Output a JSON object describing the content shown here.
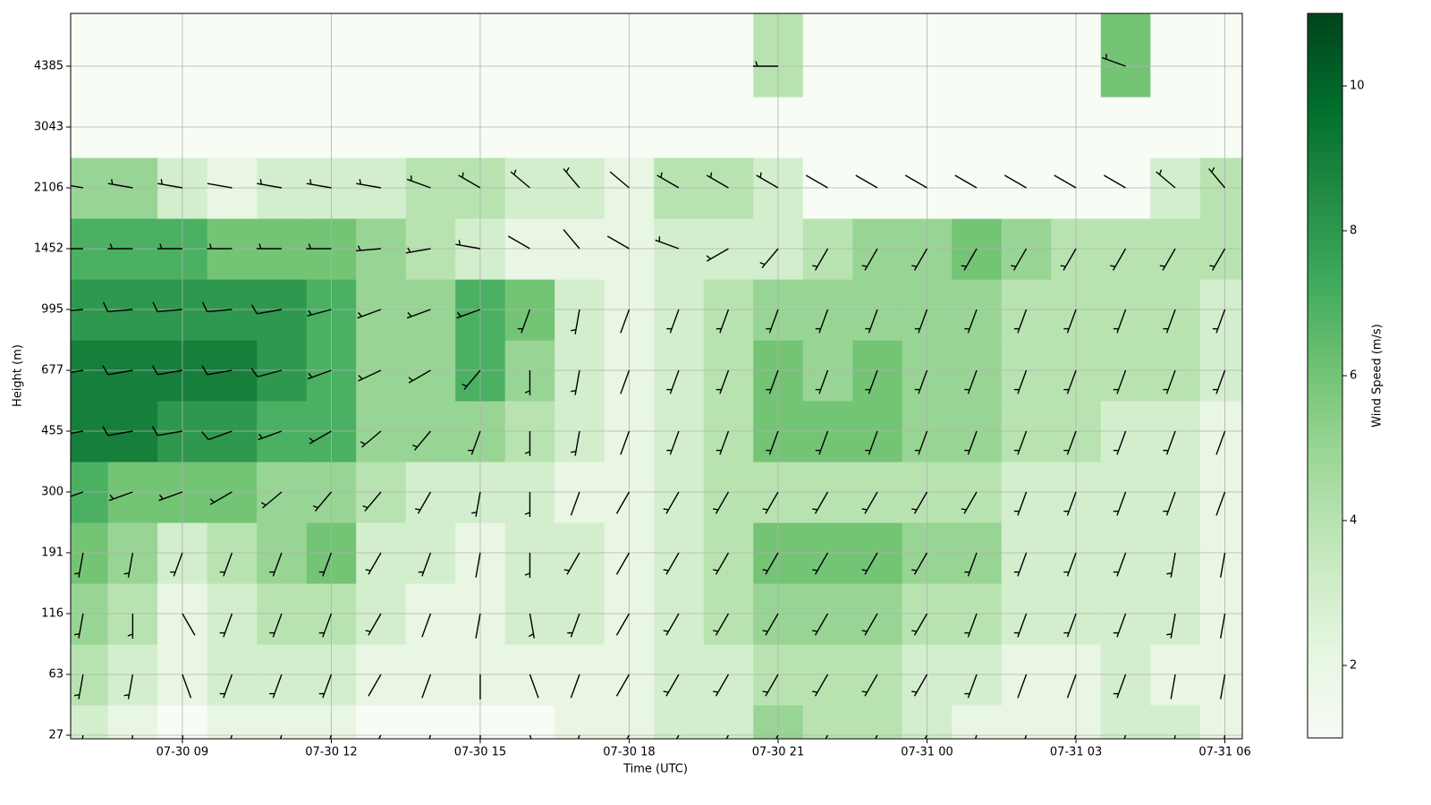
{
  "chart_data": {
    "type": "heatmap-barbs",
    "xlabel": "Time (UTC)",
    "ylabel": "Height (m)",
    "colorbar_label": "Wind Speed (m/s)",
    "colormap": "Greens",
    "clim": [
      1,
      11
    ],
    "cticks": [
      2,
      4,
      6,
      8,
      10
    ],
    "grid": true,
    "barb_color": "#000000",
    "x": [
      7,
      8,
      9,
      10,
      11,
      12,
      13,
      14,
      15,
      16,
      17,
      18,
      19,
      20,
      21,
      22,
      23,
      24,
      25,
      26,
      27,
      28,
      29,
      30
    ],
    "xlim": [
      6.75,
      30.35
    ],
    "xticks": [
      {
        "value": 9,
        "label": "07-30 09"
      },
      {
        "value": 12,
        "label": "07-30 12"
      },
      {
        "value": 15,
        "label": "07-30 15"
      },
      {
        "value": 18,
        "label": "07-30 18"
      },
      {
        "value": 21,
        "label": "07-30 21"
      },
      {
        "value": 24,
        "label": "07-31 00"
      },
      {
        "value": 27,
        "label": "07-31 03"
      },
      {
        "value": 30,
        "label": "07-31 06"
      }
    ],
    "heights": [
      27,
      63,
      116,
      191,
      300,
      455,
      677,
      995,
      1452,
      2106,
      3043,
      4385
    ],
    "speed": [
      [
        3,
        2,
        1,
        2,
        2,
        2,
        1,
        1,
        1,
        1,
        2,
        2,
        3,
        3,
        5,
        4,
        4,
        3,
        2,
        2,
        2,
        3,
        3,
        2
      ],
      [
        4,
        3,
        2,
        3,
        3,
        3,
        2,
        2,
        2,
        2,
        2,
        2,
        3,
        3,
        4,
        4,
        4,
        3,
        3,
        2,
        2,
        3,
        2,
        2
      ],
      [
        5,
        4,
        2,
        3,
        4,
        4,
        3,
        2,
        2,
        3,
        3,
        2,
        3,
        4,
        5,
        5,
        5,
        4,
        4,
        3,
        3,
        3,
        3,
        2
      ],
      [
        6,
        5,
        3,
        4,
        5,
        6,
        3,
        3,
        2,
        3,
        3,
        2,
        3,
        4,
        6,
        6,
        6,
        5,
        5,
        3,
        3,
        3,
        3,
        2
      ],
      [
        7,
        6,
        6,
        6,
        5,
        5,
        4,
        3,
        3,
        3,
        2,
        2,
        3,
        4,
        4,
        4,
        4,
        4,
        4,
        3,
        3,
        3,
        3,
        2
      ],
      [
        9,
        9,
        8,
        8,
        7,
        7,
        5,
        5,
        5,
        4,
        3,
        2,
        3,
        4,
        6,
        6,
        6,
        5,
        5,
        4,
        4,
        3,
        3,
        2
      ],
      [
        9,
        9,
        9,
        9,
        8,
        7,
        5,
        5,
        7,
        5,
        3,
        2,
        3,
        4,
        6,
        5,
        6,
        5,
        5,
        4,
        4,
        4,
        4,
        3
      ],
      [
        8,
        8,
        8,
        8,
        8,
        7,
        5,
        5,
        7,
        6,
        3,
        2,
        3,
        4,
        5,
        5,
        5,
        5,
        5,
        4,
        4,
        4,
        4,
        3
      ],
      [
        7,
        7,
        7,
        6,
        6,
        6,
        5,
        4,
        3,
        2,
        2,
        2,
        3,
        3,
        3,
        4,
        5,
        5,
        6,
        5,
        4,
        4,
        4,
        4
      ],
      [
        5,
        5,
        3,
        2,
        3,
        3,
        3,
        4,
        4,
        3,
        3,
        2,
        4,
        4,
        3,
        1,
        1,
        1,
        1,
        1,
        1,
        1,
        3,
        4
      ],
      [
        1,
        1,
        1,
        1,
        1,
        1,
        1,
        1,
        1,
        1,
        1,
        1,
        1,
        1,
        1,
        1,
        1,
        1,
        1,
        1,
        1,
        1,
        1,
        1
      ],
      [
        1,
        1,
        1,
        1,
        1,
        1,
        1,
        1,
        1,
        1,
        1,
        1,
        1,
        1,
        4,
        1,
        1,
        1,
        1,
        1,
        1,
        6,
        1,
        1
      ]
    ],
    "direction": [
      [
        190,
        190,
        170,
        200,
        200,
        200,
        210,
        200,
        180,
        160,
        200,
        210,
        210,
        210,
        210,
        210,
        210,
        210,
        200,
        200,
        200,
        200,
        190,
        190
      ],
      [
        190,
        190,
        160,
        200,
        200,
        200,
        210,
        200,
        180,
        160,
        200,
        210,
        210,
        210,
        210,
        210,
        210,
        210,
        200,
        200,
        200,
        200,
        190,
        190
      ],
      [
        190,
        180,
        150,
        200,
        200,
        200,
        210,
        200,
        190,
        170,
        200,
        210,
        210,
        210,
        210,
        210,
        210,
        210,
        200,
        200,
        200,
        200,
        190,
        190
      ],
      [
        190,
        190,
        200,
        200,
        200,
        200,
        210,
        200,
        190,
        180,
        210,
        210,
        210,
        210,
        210,
        210,
        210,
        210,
        200,
        200,
        200,
        200,
        190,
        190
      ],
      [
        250,
        250,
        250,
        240,
        230,
        220,
        220,
        210,
        190,
        180,
        200,
        210,
        210,
        210,
        210,
        210,
        210,
        210,
        210,
        200,
        200,
        200,
        200,
        200
      ],
      [
        260,
        260,
        260,
        250,
        250,
        240,
        230,
        220,
        200,
        180,
        190,
        200,
        200,
        200,
        200,
        200,
        200,
        200,
        200,
        200,
        200,
        200,
        200,
        200
      ],
      [
        260,
        260,
        260,
        260,
        255,
        250,
        245,
        240,
        220,
        180,
        190,
        200,
        200,
        200,
        200,
        200,
        200,
        200,
        200,
        200,
        200,
        200,
        200,
        200
      ],
      [
        265,
        265,
        265,
        265,
        260,
        255,
        250,
        250,
        250,
        200,
        190,
        200,
        200,
        200,
        200,
        200,
        200,
        200,
        200,
        200,
        200,
        200,
        200,
        200
      ],
      [
        270,
        270,
        270,
        270,
        270,
        270,
        265,
        260,
        280,
        300,
        320,
        300,
        290,
        240,
        220,
        210,
        210,
        210,
        210,
        210,
        210,
        210,
        210,
        210
      ],
      [
        280,
        280,
        280,
        280,
        280,
        280,
        280,
        290,
        300,
        310,
        320,
        310,
        300,
        300,
        300,
        300,
        300,
        300,
        300,
        300,
        300,
        300,
        310,
        320
      ],
      [
        null,
        null,
        null,
        null,
        null,
        null,
        null,
        null,
        null,
        null,
        null,
        null,
        null,
        null,
        null,
        null,
        null,
        null,
        null,
        null,
        null,
        null,
        null,
        null
      ],
      [
        null,
        null,
        null,
        null,
        null,
        null,
        null,
        null,
        null,
        null,
        null,
        null,
        null,
        null,
        270,
        null,
        null,
        null,
        null,
        null,
        null,
        290,
        null,
        null
      ]
    ]
  }
}
